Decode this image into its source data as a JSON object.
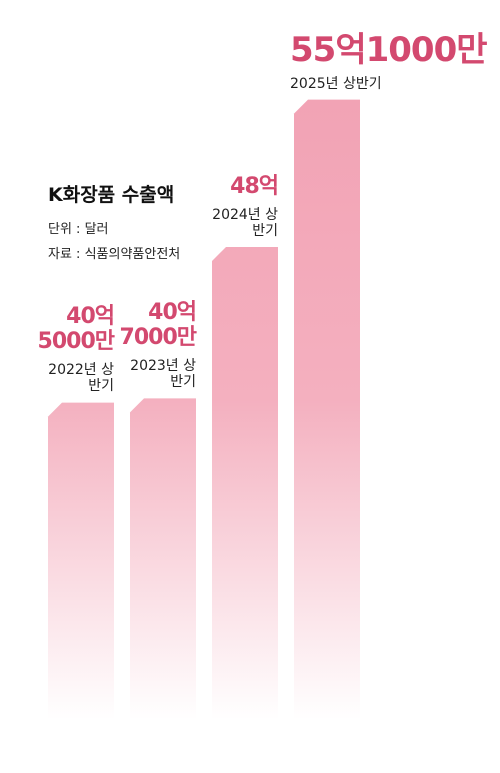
{
  "chart_data": {
    "type": "bar",
    "title": "K화장품 수출액",
    "unit_note": "단위 : 달러",
    "source": "자료 : 식품의약품안전처",
    "categories": [
      "2022년 상반기",
      "2023년 상반기",
      "2024년 상반기",
      "2025년 상반기"
    ],
    "values": [
      40.5,
      40.7,
      48,
      55.1
    ],
    "value_labels": [
      "40억 5000만",
      "40억 7000만",
      "48억",
      "55억1000만"
    ],
    "color": "#f2a2b4",
    "label_color": "#d3496f",
    "ylim": [
      25.2,
      56
    ]
  }
}
